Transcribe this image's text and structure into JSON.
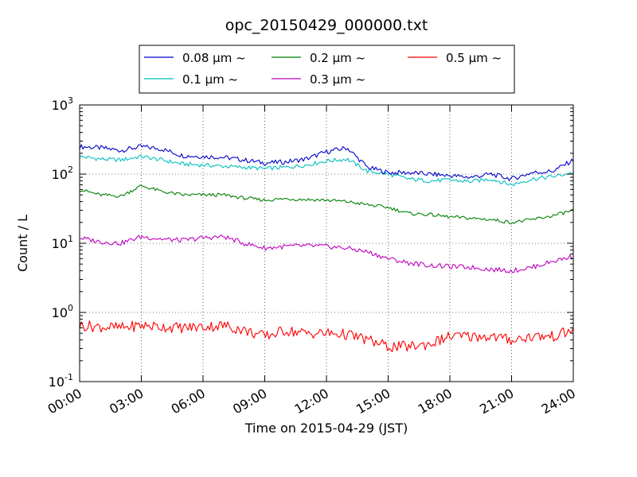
{
  "chart_data": {
    "type": "line",
    "title": "opc_20150429_000000.txt",
    "xlabel": "Time on 2015-04-29 (JST)",
    "ylabel": "Count / L",
    "xlim": [
      "00:00",
      "24:00"
    ],
    "x_ticks": [
      "00:00",
      "03:00",
      "06:00",
      "09:00",
      "12:00",
      "15:00",
      "18:00",
      "21:00",
      "24:00"
    ],
    "y_scale": "log",
    "ylim": [
      0.1,
      1000
    ],
    "y_ticks": [
      {
        "base": "10",
        "exp": "-1"
      },
      {
        "base": "10",
        "exp": "0"
      },
      {
        "base": "10",
        "exp": "1"
      },
      {
        "base": "10",
        "exp": "2"
      },
      {
        "base": "10",
        "exp": "3"
      }
    ],
    "grid": true,
    "legend_position": "top-center",
    "x_hours": [
      0,
      1,
      2,
      3,
      4,
      5,
      6,
      7,
      8,
      9,
      10,
      11,
      12,
      13,
      14,
      15,
      16,
      17,
      18,
      19,
      20,
      21,
      22,
      23,
      24
    ],
    "series": [
      {
        "name": "0.08 μm ~",
        "color": "#0000cc",
        "values": [
          250,
          240,
          220,
          250,
          230,
          185,
          180,
          175,
          160,
          145,
          150,
          165,
          210,
          240,
          125,
          105,
          105,
          100,
          95,
          90,
          100,
          85,
          105,
          110,
          160
        ]
      },
      {
        "name": "0.1 μm ~",
        "color": "#00bfbf",
        "values": [
          180,
          165,
          160,
          180,
          160,
          140,
          135,
          130,
          125,
          120,
          125,
          135,
          155,
          165,
          110,
          100,
          85,
          80,
          82,
          78,
          85,
          70,
          85,
          92,
          105
        ]
      },
      {
        "name": "0.2 μm ~",
        "color": "#007f00",
        "values": [
          60,
          50,
          48,
          68,
          56,
          50,
          50,
          50,
          45,
          42,
          44,
          43,
          42,
          40,
          36,
          33,
          27,
          26,
          24,
          23,
          22,
          20,
          22,
          25,
          30
        ]
      },
      {
        "name": "0.3 μm ~",
        "color": "#bf00bf",
        "values": [
          12,
          10.5,
          10,
          12.5,
          11.5,
          11,
          12,
          12.5,
          10,
          8.5,
          9,
          9.2,
          9,
          8.5,
          7.5,
          6,
          5.2,
          4.8,
          4.6,
          4.5,
          4.2,
          4,
          4.5,
          5.5,
          6.5
        ]
      },
      {
        "name": "0.5 μm ~",
        "color": "#ff0000",
        "values": [
          0.65,
          0.62,
          0.6,
          0.65,
          0.62,
          0.6,
          0.62,
          0.65,
          0.55,
          0.45,
          0.55,
          0.5,
          0.5,
          0.48,
          0.4,
          0.32,
          0.32,
          0.35,
          0.45,
          0.45,
          0.45,
          0.4,
          0.45,
          0.45,
          0.55
        ]
      }
    ]
  }
}
